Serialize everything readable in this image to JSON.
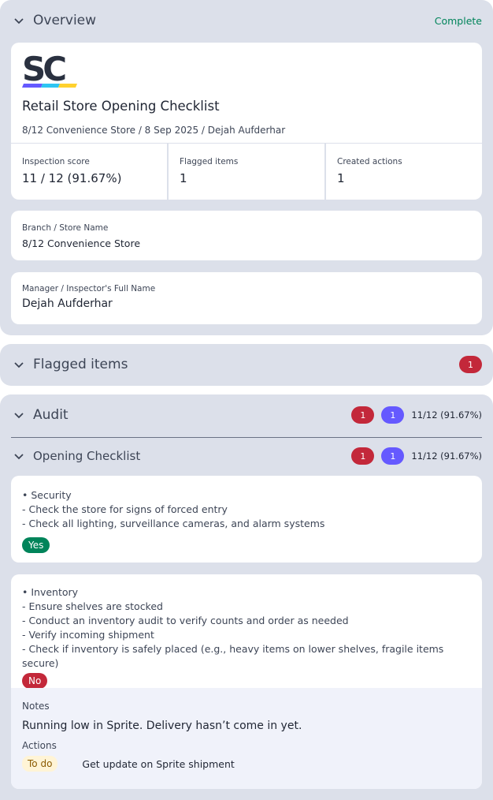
{
  "overview": {
    "title": "Overview",
    "status": "Complete",
    "status_color": "#00845a",
    "logo_text": "SC",
    "report_title": "Retail Store Opening Checklist",
    "subtitle": "8/12 Convenience Store / 8 Sep 2025 / Dejah Aufderhar",
    "stats": [
      {
        "label": "Inspection score",
        "value": "11 / 12 (91.67%)"
      },
      {
        "label": "Flagged items",
        "value": "1"
      },
      {
        "label": "Created actions",
        "value": "1"
      }
    ],
    "fields": [
      {
        "label": "Branch / Store Name",
        "value": "8/12 Convenience Store"
      },
      {
        "label": "Manager / Inspector's Full Name",
        "value": "Dejah Aufderhar"
      }
    ]
  },
  "flagged": {
    "title": "Flagged items",
    "count": "1"
  },
  "audit": {
    "title": "Audit",
    "flagged_count": "1",
    "action_count": "1",
    "score": "11/12 (91.67%)",
    "section": {
      "title": "Opening Checklist",
      "flagged_count": "1",
      "action_count": "1",
      "score": "11/12 (91.67%)"
    },
    "items": [
      {
        "lines": [
          "• Security",
          "- Check the store for signs of forced entry",
          "- Check all lighting, surveillance cameras, and alarm systems"
        ],
        "response": "Yes",
        "response_color": "#00845a"
      },
      {
        "lines": [
          "• Inventory",
          "- Ensure shelves are stocked",
          "- Conduct an inventory audit to verify counts and order as needed",
          "- Verify incoming shipment",
          "- Check if inventory is safely placed (e.g., heavy items on lower shelves, fragile items secure)"
        ],
        "response": "No",
        "response_color": "#c3283a",
        "notes_label": "Notes",
        "notes": "Running low in Sprite. Delivery hasn’t come in yet.",
        "actions_label": "Actions",
        "action": {
          "status": "To do",
          "title": "Get update on Sprite shipment"
        }
      }
    ]
  }
}
